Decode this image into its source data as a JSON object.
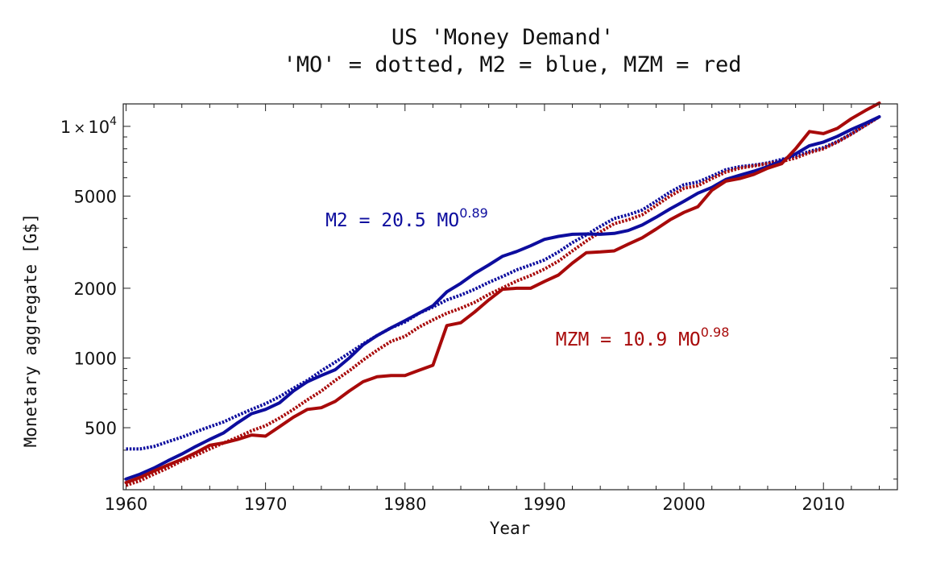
{
  "chart_data": {
    "type": "line",
    "title": "US 'Money Demand'",
    "subtitle": "'MO' = dotted, M2 = blue, MZM = red",
    "xlabel": "Year",
    "ylabel": "Monetary aggregate [G$]",
    "xlim": [
      1959.8,
      2015.3
    ],
    "ylim": [
      270,
      12500
    ],
    "y_scale": "log",
    "grid": false,
    "x_ticks": [
      {
        "value": 1960,
        "label": "1960"
      },
      {
        "value": 1970,
        "label": "1970"
      },
      {
        "value": 1980,
        "label": "1980"
      },
      {
        "value": 1990,
        "label": "1990"
      },
      {
        "value": 2000,
        "label": "2000"
      },
      {
        "value": 2010,
        "label": "2010"
      }
    ],
    "y_ticks": [
      {
        "value": 500,
        "label": "500"
      },
      {
        "value": 1000,
        "label": "1000"
      },
      {
        "value": 2000,
        "label": "2000"
      },
      {
        "value": 5000,
        "label": "5000"
      },
      {
        "value": 10000,
        "label_base": "1",
        "label_times": "×",
        "label_ten": "10",
        "label_exp": "4"
      }
    ],
    "series": [
      {
        "name": "M2",
        "color": "#0d0d9e",
        "style": "solid",
        "x": [
          1960,
          1961,
          1962,
          1963,
          1964,
          1965,
          1966,
          1967,
          1968,
          1969,
          1970,
          1971,
          1972,
          1973,
          1974,
          1975,
          1976,
          1977,
          1978,
          1979,
          1980,
          1981,
          1982,
          1983,
          1984,
          1985,
          1986,
          1987,
          1988,
          1989,
          1990,
          1991,
          1992,
          1993,
          1994,
          1995,
          1996,
          1997,
          1998,
          1999,
          2000,
          2001,
          2002,
          2003,
          2004,
          2005,
          2006,
          2007,
          2008,
          2009,
          2010,
          2011,
          2012,
          2013,
          2014
        ],
        "y": [
          300,
          315,
          335,
          360,
          385,
          415,
          445,
          475,
          525,
          575,
          600,
          640,
          720,
          790,
          840,
          890,
          1000,
          1140,
          1250,
          1350,
          1450,
          1560,
          1680,
          1930,
          2100,
          2320,
          2520,
          2750,
          2880,
          3050,
          3250,
          3350,
          3420,
          3430,
          3420,
          3450,
          3550,
          3750,
          4050,
          4400,
          4750,
          5150,
          5450,
          5900,
          6150,
          6400,
          6700,
          7100,
          7600,
          8250,
          8550,
          9050,
          9700,
          10300,
          11000
        ]
      },
      {
        "name": "M2 dotted",
        "color": "#0d0d9e",
        "style": "dotted",
        "x": [
          1960,
          1961,
          1962,
          1963,
          1964,
          1965,
          1966,
          1967,
          1968,
          1969,
          1970,
          1971,
          1972,
          1973,
          1974,
          1975,
          1976,
          1977,
          1978,
          1979,
          1980,
          1981,
          1982,
          1983,
          1984,
          1985,
          1986,
          1987,
          1988,
          1989,
          1990,
          1991,
          1992,
          1993,
          1994,
          1995,
          1996,
          1997,
          1998,
          1999,
          2000,
          2001,
          2002,
          2003,
          2004,
          2005,
          2006,
          2007,
          2008,
          2009,
          2010,
          2011,
          2012,
          2013,
          2014
        ],
        "y": [
          405,
          405,
          415,
          435,
          455,
          480,
          505,
          530,
          565,
          600,
          635,
          680,
          740,
          800,
          880,
          960,
          1050,
          1150,
          1250,
          1350,
          1430,
          1560,
          1660,
          1780,
          1870,
          1980,
          2120,
          2250,
          2400,
          2520,
          2650,
          2870,
          3150,
          3400,
          3700,
          4000,
          4150,
          4350,
          4750,
          5200,
          5600,
          5750,
          6100,
          6500,
          6700,
          6800,
          6950,
          7200,
          7450,
          7800,
          8100,
          8600,
          9300,
          10100,
          11000
        ]
      },
      {
        "name": "MZM",
        "color": "#a80a0a",
        "style": "solid",
        "x": [
          1960,
          1961,
          1962,
          1963,
          1964,
          1965,
          1966,
          1967,
          1968,
          1969,
          1970,
          1971,
          1972,
          1973,
          1974,
          1975,
          1976,
          1977,
          1978,
          1979,
          1980,
          1981,
          1982,
          1983,
          1984,
          1985,
          1986,
          1987,
          1988,
          1989,
          1990,
          1991,
          1992,
          1993,
          1994,
          1995,
          1996,
          1997,
          1998,
          1999,
          2000,
          2001,
          2002,
          2003,
          2004,
          2005,
          2006,
          2007,
          2008,
          2009,
          2010,
          2011,
          2012,
          2013,
          2014
        ],
        "y": [
          290,
          305,
          325,
          345,
          365,
          390,
          420,
          430,
          445,
          465,
          460,
          505,
          555,
          600,
          610,
          650,
          720,
          790,
          830,
          840,
          840,
          885,
          930,
          1380,
          1420,
          1580,
          1780,
          1980,
          2000,
          2000,
          2140,
          2280,
          2570,
          2850,
          2870,
          2900,
          3100,
          3300,
          3600,
          3950,
          4250,
          4500,
          5300,
          5800,
          5950,
          6200,
          6600,
          6900,
          8000,
          9500,
          9300,
          9800,
          10800,
          11700,
          12600
        ]
      },
      {
        "name": "MZM dotted",
        "color": "#a80a0a",
        "style": "dotted",
        "x": [
          1960,
          1961,
          1962,
          1963,
          1964,
          1965,
          1966,
          1967,
          1968,
          1969,
          1970,
          1971,
          1972,
          1973,
          1974,
          1975,
          1976,
          1977,
          1978,
          1979,
          1980,
          1981,
          1982,
          1983,
          1984,
          1985,
          1986,
          1987,
          1988,
          1989,
          1990,
          1991,
          1992,
          1993,
          1994,
          1995,
          1996,
          1997,
          1998,
          1999,
          2000,
          2001,
          2002,
          2003,
          2004,
          2005,
          2006,
          2007,
          2008,
          2009,
          2010,
          2011,
          2012,
          2013,
          2014
        ],
        "y": [
          282,
          295,
          315,
          335,
          360,
          380,
          405,
          430,
          455,
          485,
          510,
          550,
          600,
          660,
          720,
          800,
          880,
          980,
          1080,
          1180,
          1240,
          1360,
          1460,
          1560,
          1640,
          1740,
          1880,
          2010,
          2150,
          2270,
          2420,
          2620,
          2900,
          3200,
          3500,
          3800,
          3950,
          4150,
          4550,
          5000,
          5400,
          5550,
          5950,
          6350,
          6600,
          6750,
          6900,
          7050,
          7300,
          7700,
          8000,
          8550,
          9250,
          10100,
          11000
        ]
      }
    ],
    "annotations": [
      {
        "base": "M2 = 20.5 MO",
        "exponent": "0.89",
        "color": "#0d0d9e",
        "x": 1974.3,
        "y": 3700
      },
      {
        "base": "MZM = 10.9 MO",
        "exponent": "0.98",
        "color": "#a80a0a",
        "x": 1990.8,
        "y": 1130
      }
    ]
  }
}
